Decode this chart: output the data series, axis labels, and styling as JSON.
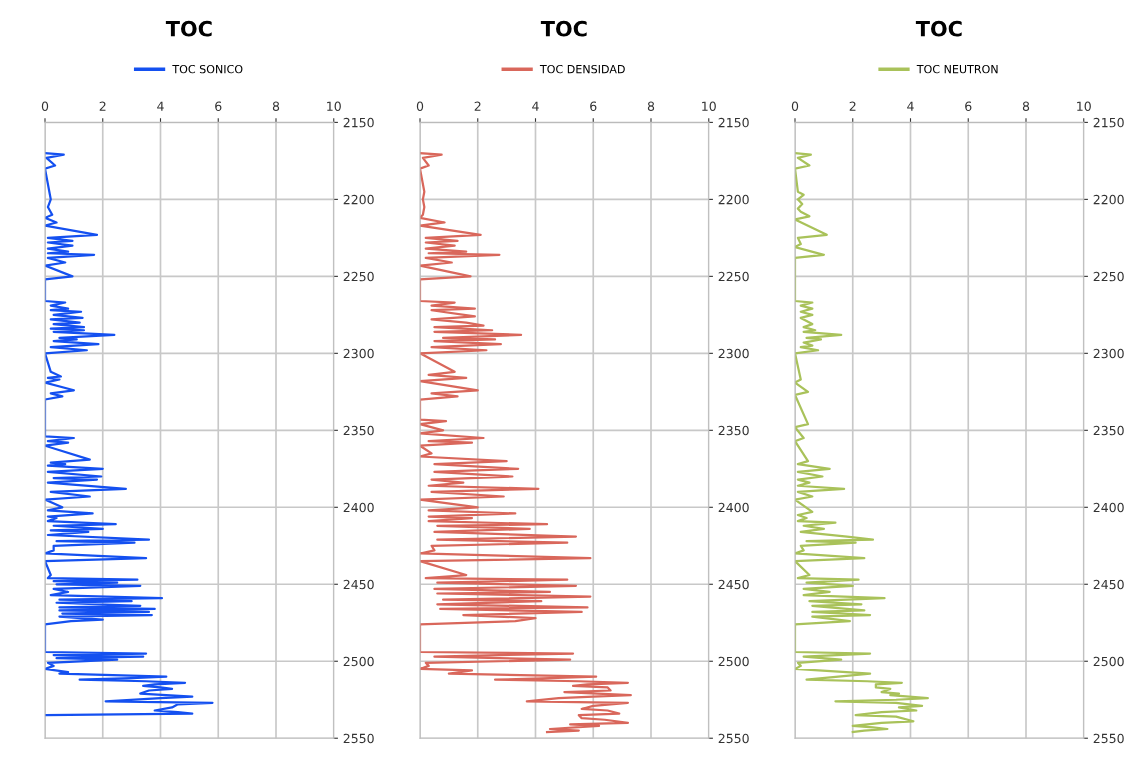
{
  "chart_data": [
    {
      "type": "line",
      "title": "TOC",
      "orientation": "horizontal",
      "legend": "top",
      "grid": true,
      "line_style": "solid",
      "xlim": [
        0,
        10
      ],
      "xticks": [
        0,
        2,
        4,
        6,
        8,
        10
      ],
      "ylim": [
        2550,
        2150
      ],
      "yticks": [
        2150,
        2200,
        2250,
        2300,
        2350,
        2400,
        2450,
        2500,
        2550
      ],
      "series": [
        {
          "name": "TOC SONICO",
          "color": "#1450f0",
          "x": [
            2170,
            2171,
            2173,
            2178,
            2180,
            2195,
            2200,
            2205,
            2210,
            2212,
            2215,
            2217,
            2223,
            2225,
            2227,
            2228,
            2230,
            2232,
            2234,
            2235,
            2236,
            2238,
            2241,
            2243,
            2250,
            2252,
            2266,
            2267,
            2269,
            2271,
            2272,
            2273,
            2275,
            2277,
            2278,
            2280,
            2281,
            2283,
            2284,
            2285,
            2286,
            2288,
            2290,
            2291,
            2292,
            2294,
            2296,
            2298,
            2300,
            2312,
            2315,
            2316,
            2317,
            2319,
            2324,
            2326,
            2328,
            2330,
            2354,
            2355,
            2357,
            2358,
            2360,
            2369,
            2371,
            2372,
            2373,
            2375,
            2377,
            2380,
            2381,
            2382,
            2384,
            2388,
            2390,
            2393,
            2395,
            2400,
            2402,
            2404,
            2406,
            2407,
            2409,
            2411,
            2412,
            2414,
            2415,
            2416,
            2418,
            2421,
            2422,
            2423,
            2425,
            2428,
            2430,
            2433,
            2435,
            2444,
            2446,
            2447,
            2448,
            2449,
            2450,
            2451,
            2453,
            2455,
            2457,
            2459,
            2460,
            2461,
            2462,
            2464,
            2465,
            2466,
            2467,
            2468,
            2469,
            2470,
            2471,
            2473,
            2474,
            2476,
            2494,
            2495,
            2496,
            2497,
            2498,
            2499,
            2501,
            2503,
            2505,
            2507,
            2508,
            2510,
            2511,
            2512,
            2513,
            2514,
            2515,
            2516,
            2517,
            2518,
            2519,
            2521,
            2522,
            2523,
            2524,
            2526,
            2527,
            2528,
            2530,
            2532,
            2533,
            2534,
            2535
          ],
          "values": [
            0,
            0.65,
            0.05,
            0.35,
            0,
            0.15,
            0.2,
            0.1,
            0.25,
            0,
            0.4,
            0,
            1.8,
            0.1,
            0.95,
            0.1,
            0.95,
            0.1,
            0.8,
            0.1,
            1.7,
            0.1,
            0.7,
            0,
            0.95,
            0,
            0,
            0.7,
            0.2,
            0.8,
            0.2,
            1.25,
            0.3,
            1.3,
            0.2,
            1.2,
            0.3,
            1.35,
            0.2,
            1.35,
            0.3,
            2.4,
            0.5,
            1.1,
            0.3,
            1.85,
            0.2,
            1.45,
            0,
            0.2,
            0.55,
            0.1,
            0.5,
            0,
            1.0,
            0.2,
            0.6,
            0,
            0,
            1.0,
            0.1,
            0.8,
            0,
            1.55,
            0.2,
            0.7,
            0.1,
            2.0,
            0.1,
            1.95,
            0.3,
            1.8,
            0.1,
            2.8,
            0.2,
            1.55,
            0,
            0.6,
            0.1,
            1.65,
            0.1,
            0.4,
            0.1,
            2.45,
            0.3,
            2.0,
            0.2,
            1.5,
            0.1,
            3.6,
            0.4,
            3.1,
            0.3,
            0.3,
            0,
            3.5,
            0,
            0.2,
            0.1,
            3.2,
            0.3,
            2.5,
            0.4,
            3.3,
            0.3,
            0.8,
            0.2,
            4.05,
            0.5,
            3.0,
            0.4,
            3.3,
            0.5,
            3.8,
            0.5,
            3.6,
            0.6,
            3.7,
            0.5,
            2.0,
            0.9,
            0,
            0,
            3.5,
            0.3,
            3.4,
            0.4,
            2.5,
            0.1,
            0.3,
            0,
            0.8,
            0.5,
            4.2,
            3.0,
            1.2,
            3.5,
            4.85,
            3.8,
            3.4,
            4.0,
            4.4,
            3.6,
            3.3,
            4.2,
            5.1,
            4.0,
            2.1,
            5.8,
            4.6,
            4.4,
            3.8,
            4.6,
            5.1,
            0
          ]
        }
      ]
    },
    {
      "type": "line",
      "title": "TOC",
      "orientation": "horizontal",
      "legend": "top",
      "grid": true,
      "line_style": "solid",
      "xlim": [
        0,
        10
      ],
      "xticks": [
        0,
        2,
        4,
        6,
        8,
        10
      ],
      "ylim": [
        2550,
        2150
      ],
      "yticks": [
        2150,
        2200,
        2250,
        2300,
        2350,
        2400,
        2450,
        2500,
        2550
      ],
      "series": [
        {
          "name": "TOC DENSIDAD",
          "color": "#d9675b",
          "x": [
            2170,
            2171,
            2173,
            2178,
            2180,
            2195,
            2200,
            2205,
            2210,
            2212,
            2215,
            2217,
            2223,
            2225,
            2227,
            2228,
            2230,
            2232,
            2234,
            2235,
            2236,
            2238,
            2241,
            2243,
            2250,
            2252,
            2266,
            2267,
            2269,
            2271,
            2272,
            2276,
            2278,
            2280,
            2282,
            2283,
            2285,
            2286,
            2288,
            2290,
            2291,
            2292,
            2294,
            2296,
            2298,
            2300,
            2312,
            2314,
            2316,
            2318,
            2324,
            2326,
            2328,
            2330,
            2343,
            2344,
            2346,
            2350,
            2352,
            2355,
            2357,
            2358,
            2360,
            2365,
            2367,
            2370,
            2372,
            2375,
            2377,
            2380,
            2382,
            2384,
            2386,
            2388,
            2390,
            2393,
            2395,
            2400,
            2402,
            2404,
            2406,
            2407,
            2409,
            2411,
            2412,
            2414,
            2416,
            2419,
            2421,
            2423,
            2425,
            2428,
            2430,
            2433,
            2435,
            2444,
            2446,
            2447,
            2449,
            2451,
            2453,
            2455,
            2456,
            2458,
            2460,
            2461,
            2463,
            2465,
            2466,
            2468,
            2470,
            2472,
            2474,
            2476,
            2494,
            2495,
            2497,
            2499,
            2501,
            2503,
            2505,
            2506,
            2508,
            2510,
            2511,
            2512,
            2513,
            2514,
            2515,
            2516,
            2517,
            2519,
            2520,
            2522,
            2523,
            2524,
            2526,
            2527,
            2529,
            2531,
            2532,
            2534,
            2535,
            2537,
            2538,
            2540,
            2541,
            2542,
            2544,
            2545,
            2546
          ],
          "values": [
            0,
            0.75,
            0.1,
            0.3,
            0,
            0.15,
            0.1,
            0.15,
            0.1,
            0,
            0.85,
            0,
            2.1,
            0.2,
            1.3,
            0.2,
            1.2,
            0.2,
            1.6,
            0.3,
            2.75,
            0.2,
            1.1,
            0,
            1.75,
            0,
            0,
            1.2,
            0.4,
            1.9,
            0.4,
            1.9,
            0.4,
            1.6,
            2.2,
            0.5,
            2.5,
            0.5,
            3.5,
            0.8,
            2.6,
            0.5,
            2.8,
            0.4,
            2.3,
            0,
            1.2,
            0.3,
            1.6,
            0,
            2.0,
            0.4,
            1.3,
            0,
            0,
            0.9,
            0,
            0.8,
            0,
            2.2,
            0.3,
            1.8,
            0,
            0.4,
            0,
            3.0,
            0.5,
            3.4,
            0.5,
            3.2,
            0.4,
            1.5,
            0.3,
            4.1,
            0.4,
            2.9,
            0,
            2.0,
            0.3,
            3.3,
            0.3,
            1.8,
            0.3,
            4.4,
            0.6,
            3.8,
            0.5,
            5.4,
            0.6,
            5.1,
            0.4,
            0.5,
            0,
            5.9,
            0,
            1.6,
            0.2,
            5.1,
            0.6,
            5.4,
            0.5,
            4.5,
            0.6,
            5.9,
            0.8,
            4.2,
            0.6,
            5.8,
            0.7,
            5.6,
            1.5,
            4.0,
            3.3,
            0,
            0,
            5.3,
            0.5,
            5.2,
            0.2,
            0.3,
            0,
            1.8,
            1.0,
            6.1,
            4.5,
            2.6,
            5.5,
            7.2,
            5.8,
            5.3,
            6.5,
            6.6,
            5.0,
            7.3,
            6.0,
            4.8,
            3.7,
            7.2,
            6.0,
            5.6,
            6.5,
            6.9,
            5.5,
            5.6,
            6.4,
            7.2,
            5.2,
            6.2,
            4.5,
            5.5,
            4.4
          ]
        }
      ]
    },
    {
      "type": "line",
      "title": "TOC",
      "orientation": "horizontal",
      "legend": "top",
      "grid": true,
      "line_style": "solid",
      "xlim": [
        0,
        10
      ],
      "xticks": [
        0,
        2,
        4,
        6,
        8,
        10
      ],
      "ylim": [
        2550,
        2150
      ],
      "yticks": [
        2150,
        2200,
        2250,
        2300,
        2350,
        2400,
        2450,
        2500,
        2550
      ],
      "series": [
        {
          "name": "TOC NEUTRON",
          "color": "#a9c25a",
          "x": [
            2170,
            2171,
            2173,
            2178,
            2180,
            2195,
            2197,
            2200,
            2203,
            2206,
            2208,
            2211,
            2213,
            2223,
            2225,
            2229,
            2231,
            2236,
            2238,
            2266,
            2267,
            2269,
            2271,
            2273,
            2275,
            2277,
            2281,
            2283,
            2285,
            2286,
            2288,
            2290,
            2291,
            2293,
            2295,
            2296,
            2298,
            2300,
            2317,
            2319,
            2325,
            2327,
            2346,
            2348,
            2355,
            2357,
            2370,
            2372,
            2375,
            2377,
            2380,
            2382,
            2384,
            2386,
            2388,
            2390,
            2393,
            2395,
            2403,
            2405,
            2407,
            2409,
            2410,
            2412,
            2414,
            2416,
            2419,
            2421,
            2422,
            2423,
            2425,
            2428,
            2430,
            2433,
            2435,
            2444,
            2446,
            2447,
            2449,
            2451,
            2453,
            2455,
            2457,
            2459,
            2461,
            2463,
            2464,
            2467,
            2468,
            2470,
            2471,
            2474,
            2476,
            2494,
            2495,
            2497,
            2499,
            2501,
            2503,
            2505,
            2508,
            2510,
            2512,
            2513,
            2514,
            2515,
            2517,
            2518,
            2520,
            2521,
            2522,
            2524,
            2525,
            2526,
            2527,
            2529,
            2530,
            2532,
            2533,
            2535,
            2536,
            2539,
            2540,
            2542,
            2543,
            2544,
            2545,
            2546
          ],
          "values": [
            0,
            0.55,
            0.1,
            0.5,
            0,
            0.1,
            0.3,
            0.1,
            0.25,
            0.1,
            0.2,
            0.5,
            0,
            1.1,
            0.1,
            0.2,
            0,
            1.0,
            0,
            0,
            0.6,
            0.2,
            0.6,
            0.2,
            0.6,
            0.2,
            0.6,
            0.3,
            0.7,
            0.3,
            1.6,
            0.4,
            0.9,
            0.3,
            0.6,
            0.2,
            0.8,
            0,
            0.2,
            0,
            0.45,
            0,
            0.45,
            0,
            0.3,
            0,
            0.45,
            0.1,
            1.2,
            0.1,
            0.95,
            0.1,
            0.5,
            0.1,
            1.7,
            0.1,
            0.6,
            0,
            0.6,
            0.1,
            0.4,
            0.1,
            1.4,
            0.3,
            1.0,
            0.2,
            1.8,
            2.7,
            0.4,
            2.1,
            0.2,
            0.3,
            0,
            2.4,
            0,
            0.5,
            0.1,
            2.2,
            0.4,
            2.0,
            0.3,
            1.2,
            0.3,
            3.1,
            0.5,
            2.3,
            0.6,
            2.4,
            0.6,
            2.6,
            0.6,
            1.9,
            0,
            0,
            2.6,
            0.3,
            1.6,
            0.1,
            0.2,
            0,
            2.6,
            1.5,
            0.4,
            2.5,
            3.7,
            2.8,
            2.8,
            3.3,
            3.0,
            3.6,
            3.3,
            4.6,
            3.5,
            1.4,
            3.5,
            4.4,
            3.6,
            4.2,
            3.0,
            2.1,
            3.5,
            4.1,
            3.0,
            2.0,
            2.7,
            3.2,
            2.4,
            2.0
          ]
        }
      ]
    }
  ]
}
